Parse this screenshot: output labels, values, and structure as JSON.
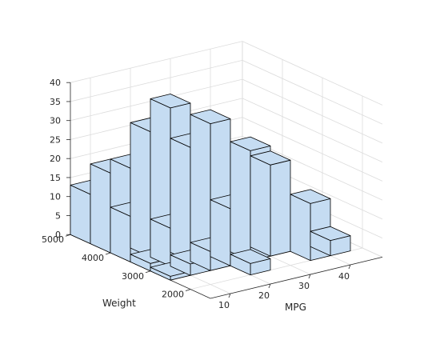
{
  "chart_data": {
    "type": "bar3",
    "title": "",
    "xlabel": "MPG",
    "ylabel": "Weight",
    "zlabel": "",
    "xlim": [
      5,
      48
    ],
    "ylim": [
      1500,
      5000
    ],
    "zlim": [
      0,
      40
    ],
    "x_ticks": [
      10,
      20,
      30,
      40
    ],
    "y_ticks": [
      2000,
      3000,
      4000,
      5000
    ],
    "z_ticks": [
      0,
      5,
      10,
      15,
      20,
      25,
      30,
      35,
      40
    ],
    "x_tick_labels": [
      "10",
      "20",
      "30",
      "40"
    ],
    "y_tick_labels": [
      "2000",
      "3000",
      "4000",
      "5000"
    ],
    "z_tick_labels": [
      "0",
      "5",
      "10",
      "15",
      "20",
      "25",
      "30",
      "35",
      "40"
    ],
    "grid": true,
    "face_color": "#c5dcf2",
    "edge_color": "#000000",
    "bins": [
      {
        "x": [
          5,
          10
        ],
        "y": [
          4500,
          5000
        ],
        "value": 13
      },
      {
        "x": [
          5,
          10
        ],
        "y": [
          4000,
          4500
        ],
        "value": 21
      },
      {
        "x": [
          5,
          10
        ],
        "y": [
          3500,
          4000
        ],
        "value": 12
      },
      {
        "x": [
          5,
          10
        ],
        "y": [
          3000,
          3500
        ],
        "value": 2
      },
      {
        "x": [
          5,
          10
        ],
        "y": [
          2500,
          3000
        ],
        "value": 1
      },
      {
        "x": [
          5,
          10
        ],
        "y": [
          2000,
          2500
        ],
        "value": 0
      },
      {
        "x": [
          5,
          10
        ],
        "y": [
          1500,
          2000
        ],
        "value": 0
      },
      {
        "x": [
          10,
          15
        ],
        "y": [
          4500,
          5000
        ],
        "value": 0
      },
      {
        "x": [
          10,
          15
        ],
        "y": [
          4000,
          4500
        ],
        "value": 21
      },
      {
        "x": [
          10,
          15
        ],
        "y": [
          3500,
          4000
        ],
        "value": 33
      },
      {
        "x": [
          10,
          15
        ],
        "y": [
          3000,
          3500
        ],
        "value": 10
      },
      {
        "x": [
          10,
          15
        ],
        "y": [
          2500,
          3000
        ],
        "value": 3
      },
      {
        "x": [
          10,
          15
        ],
        "y": [
          2000,
          2500
        ],
        "value": 0
      },
      {
        "x": [
          10,
          15
        ],
        "y": [
          1500,
          2000
        ],
        "value": 0
      },
      {
        "x": [
          15,
          20
        ],
        "y": [
          4000,
          4500
        ],
        "value": 0
      },
      {
        "x": [
          15,
          20
        ],
        "y": [
          3500,
          4000
        ],
        "value": 38
      },
      {
        "x": [
          15,
          20
        ],
        "y": [
          3000,
          3500
        ],
        "value": 30
      },
      {
        "x": [
          15,
          20
        ],
        "y": [
          2500,
          3000
        ],
        "value": 5
      },
      {
        "x": [
          15,
          20
        ],
        "y": [
          2000,
          2500
        ],
        "value": 0
      },
      {
        "x": [
          15,
          20
        ],
        "y": [
          1500,
          2000
        ],
        "value": 0
      },
      {
        "x": [
          20,
          25
        ],
        "y": [
          3500,
          4000
        ],
        "value": 0
      },
      {
        "x": [
          20,
          25
        ],
        "y": [
          3000,
          3500
        ],
        "value": 35
      },
      {
        "x": [
          20,
          25
        ],
        "y": [
          2500,
          3000
        ],
        "value": 15
      },
      {
        "x": [
          20,
          25
        ],
        "y": [
          2000,
          2500
        ],
        "value": 3
      },
      {
        "x": [
          20,
          25
        ],
        "y": [
          1500,
          2000
        ],
        "value": 0
      },
      {
        "x": [
          25,
          30
        ],
        "y": [
          3000,
          3500
        ],
        "value": 0
      },
      {
        "x": [
          25,
          30
        ],
        "y": [
          2500,
          3000
        ],
        "value": 29
      },
      {
        "x": [
          25,
          30
        ],
        "y": [
          2000,
          2500
        ],
        "value": 0
      },
      {
        "x": [
          30,
          35
        ],
        "y": [
          3000,
          3500
        ],
        "value": 0
      },
      {
        "x": [
          30,
          35
        ],
        "y": [
          2500,
          3000
        ],
        "value": 24
      },
      {
        "x": [
          30,
          35
        ],
        "y": [
          2000,
          2500
        ],
        "value": 0
      },
      {
        "x": [
          35,
          40
        ],
        "y": [
          2000,
          2500
        ],
        "value": 15
      },
      {
        "x": [
          40,
          45
        ],
        "y": [
          2000,
          2500
        ],
        "value": 4
      }
    ]
  }
}
